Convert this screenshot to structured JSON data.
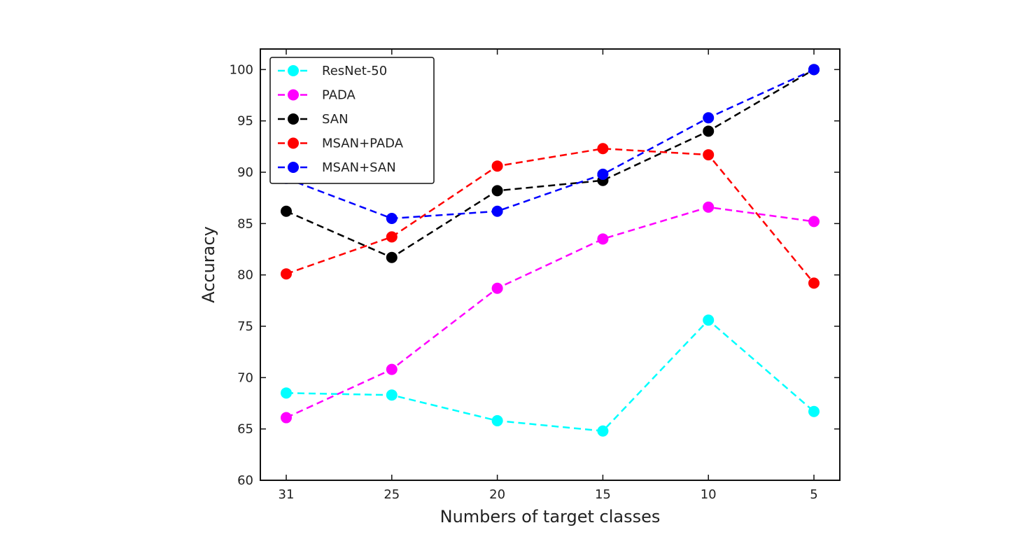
{
  "chart_data": {
    "type": "line",
    "xlabel": "Numbers of target classes",
    "ylabel": "Accuracy",
    "categories": [
      "31",
      "25",
      "20",
      "15",
      "10",
      "5"
    ],
    "ylim": [
      60,
      102
    ],
    "yticks": [
      60,
      65,
      70,
      75,
      80,
      85,
      90,
      95,
      100
    ],
    "grid": false,
    "legend_position": "top-left",
    "line_style": "dashed",
    "marker": "circle",
    "series": [
      {
        "name": "ResNet-50",
        "color": "#00ffff",
        "values": [
          68.5,
          68.3,
          65.8,
          64.8,
          75.6,
          66.7
        ]
      },
      {
        "name": "PADA",
        "color": "#ff00ff",
        "values": [
          66.1,
          70.8,
          78.7,
          83.5,
          86.6,
          85.2
        ]
      },
      {
        "name": "SAN",
        "color": "#000000",
        "values": [
          86.2,
          81.7,
          88.2,
          89.2,
          94.0,
          100.0
        ]
      },
      {
        "name": "MSAN+PADA",
        "color": "#ff0000",
        "values": [
          80.1,
          83.7,
          90.6,
          92.3,
          91.7,
          79.2
        ]
      },
      {
        "name": "MSAN+SAN",
        "color": "#0000ff",
        "values": [
          89.4,
          85.5,
          86.2,
          89.8,
          95.3,
          100.0
        ]
      }
    ]
  }
}
